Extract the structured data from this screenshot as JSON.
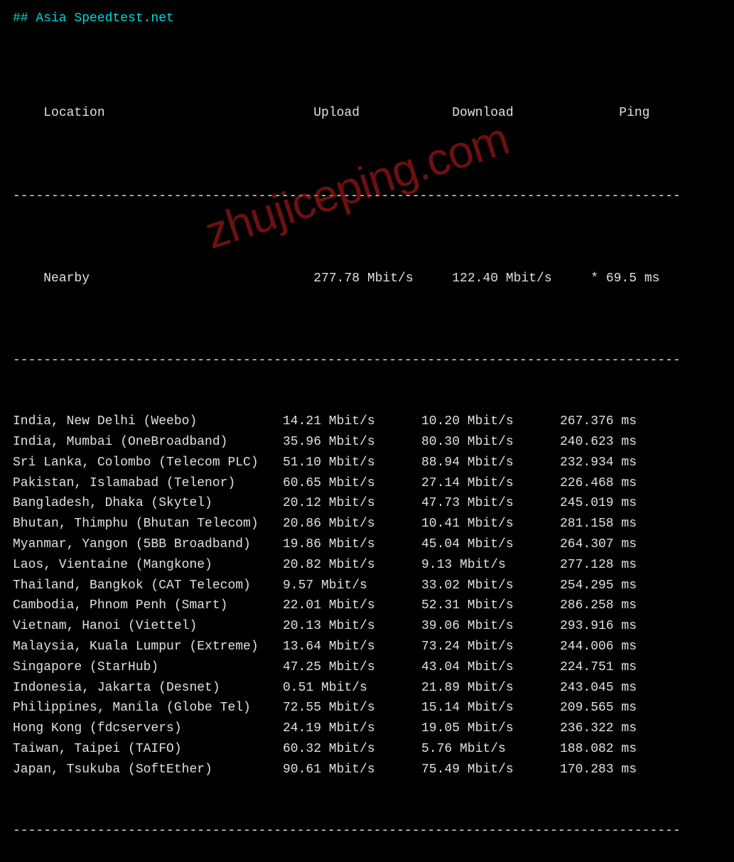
{
  "title": "## Asia Speedtest.net",
  "watermark": "zhujiceping.com",
  "headers": {
    "location": "Location",
    "upload": "Upload",
    "download": "Download",
    "ping": "Ping"
  },
  "nearby": {
    "location": "Nearby",
    "upload": "277.78 Mbit/s",
    "download": "122.40 Mbit/s",
    "ping": "* 69.5 ms"
  },
  "rows": [
    {
      "location": "India, New Delhi (Weebo)",
      "upload": "14.21 Mbit/s",
      "download": "10.20 Mbit/s",
      "ping": "267.376 ms"
    },
    {
      "location": "India, Mumbai (OneBroadband)",
      "upload": "35.96 Mbit/s",
      "download": "80.30 Mbit/s",
      "ping": "240.623 ms"
    },
    {
      "location": "Sri Lanka, Colombo (Telecom PLC)",
      "upload": "51.10 Mbit/s",
      "download": "88.94 Mbit/s",
      "ping": "232.934 ms"
    },
    {
      "location": "Pakistan, Islamabad (Telenor)",
      "upload": "60.65 Mbit/s",
      "download": "27.14 Mbit/s",
      "ping": "226.468 ms"
    },
    {
      "location": "Bangladesh, Dhaka (Skytel)",
      "upload": "20.12 Mbit/s",
      "download": "47.73 Mbit/s",
      "ping": "245.019 ms"
    },
    {
      "location": "Bhutan, Thimphu (Bhutan Telecom)",
      "upload": "20.86 Mbit/s",
      "download": "10.41 Mbit/s",
      "ping": "281.158 ms"
    },
    {
      "location": "Myanmar, Yangon (5BB Broadband)",
      "upload": "19.86 Mbit/s",
      "download": "45.04 Mbit/s",
      "ping": "264.307 ms"
    },
    {
      "location": "Laos, Vientaine (Mangkone)",
      "upload": "20.82 Mbit/s",
      "download": "9.13 Mbit/s",
      "ping": "277.128 ms"
    },
    {
      "location": "Thailand, Bangkok (CAT Telecom)",
      "upload": "9.57 Mbit/s",
      "download": "33.02 Mbit/s",
      "ping": "254.295 ms"
    },
    {
      "location": "Cambodia, Phnom Penh (Smart)",
      "upload": "22.01 Mbit/s",
      "download": "52.31 Mbit/s",
      "ping": "286.258 ms"
    },
    {
      "location": "Vietnam, Hanoi (Viettel)",
      "upload": "20.13 Mbit/s",
      "download": "39.06 Mbit/s",
      "ping": "293.916 ms"
    },
    {
      "location": "Malaysia, Kuala Lumpur (Extreme)",
      "upload": "13.64 Mbit/s",
      "download": "73.24 Mbit/s",
      "ping": "244.006 ms"
    },
    {
      "location": "Singapore (StarHub)",
      "upload": "47.25 Mbit/s",
      "download": "43.04 Mbit/s",
      "ping": "224.751 ms"
    },
    {
      "location": "Indonesia, Jakarta (Desnet)",
      "upload": "0.51 Mbit/s",
      "download": "21.89 Mbit/s",
      "ping": "243.045 ms"
    },
    {
      "location": "Philippines, Manila (Globe Tel)",
      "upload": "72.55 Mbit/s",
      "download": "15.14 Mbit/s",
      "ping": "209.565 ms"
    },
    {
      "location": "Hong Kong (fdcservers)",
      "upload": "24.19 Mbit/s",
      "download": "19.05 Mbit/s",
      "ping": "236.322 ms"
    },
    {
      "location": "Taiwan, Taipei (TAIFO)",
      "upload": "60.32 Mbit/s",
      "download": "5.76 Mbit/s",
      "ping": "188.082 ms"
    },
    {
      "location": "Japan, Tsukuba (SoftEther)",
      "upload": "90.61 Mbit/s",
      "download": "75.49 Mbit/s",
      "ping": "170.283 ms"
    }
  ],
  "divider": "---------------------------------------------------------------------------------------",
  "colors": {
    "background": "#000000",
    "text": "#e0e0e0",
    "title": "#00d7d7",
    "watermark": "rgba(200,30,30,0.55)"
  }
}
